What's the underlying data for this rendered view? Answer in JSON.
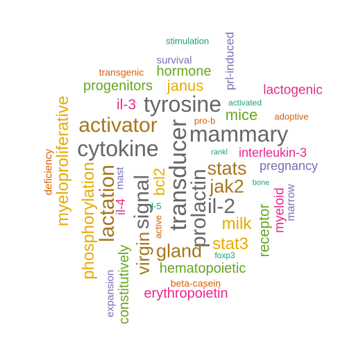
{
  "palette": {
    "teal": "#1b9e77",
    "orange": "#d95f02",
    "purple": "#7570b3",
    "magenta": "#e7298a",
    "green": "#66a61e",
    "gold": "#e6ab02",
    "brown": "#a6761d",
    "gray": "#666666"
  },
  "words": [
    {
      "id": "stimulation",
      "text": "stimulation",
      "color": "teal"
    },
    {
      "id": "survival",
      "text": "survival",
      "color": "purple"
    },
    {
      "id": "transgenic",
      "text": "transgenic",
      "color": "orange"
    },
    {
      "id": "hormone",
      "text": "hormone",
      "color": "green"
    },
    {
      "id": "prl-induced",
      "text": "prl-induced",
      "color": "purple"
    },
    {
      "id": "progenitors",
      "text": "progenitors",
      "color": "green"
    },
    {
      "id": "janus",
      "text": "janus",
      "color": "gold"
    },
    {
      "id": "lactogenic",
      "text": "lactogenic",
      "color": "magenta"
    },
    {
      "id": "activated",
      "text": "activated",
      "color": "teal"
    },
    {
      "id": "il-3",
      "text": "il-3",
      "color": "magenta"
    },
    {
      "id": "tyrosine",
      "text": "tyrosine",
      "color": "gray"
    },
    {
      "id": "mice",
      "text": "mice",
      "color": "green"
    },
    {
      "id": "adoptive",
      "text": "adoptive",
      "color": "orange"
    },
    {
      "id": "myeloproliferative",
      "text": "myeloproliferative",
      "color": "gold"
    },
    {
      "id": "pro-b",
      "text": "pro-b",
      "color": "orange"
    },
    {
      "id": "activator",
      "text": "activator",
      "color": "brown"
    },
    {
      "id": "mammary",
      "text": "mammary",
      "color": "gray"
    },
    {
      "id": "cytokine",
      "text": "cytokine",
      "color": "gray"
    },
    {
      "id": "transducer",
      "text": "transducer",
      "color": "gray"
    },
    {
      "id": "deficiency",
      "text": "deficiency",
      "color": "orange"
    },
    {
      "id": "rankl",
      "text": "rankl",
      "color": "teal"
    },
    {
      "id": "interleukin-3",
      "text": "interleukin-3",
      "color": "magenta"
    },
    {
      "id": "mast",
      "text": "mast",
      "color": "purple"
    },
    {
      "id": "stats",
      "text": "stats",
      "color": "brown"
    },
    {
      "id": "pregnancy",
      "text": "pregnancy",
      "color": "purple"
    },
    {
      "id": "lactation",
      "text": "lactation",
      "color": "brown"
    },
    {
      "id": "prolactin",
      "text": "prolactin",
      "color": "gray"
    },
    {
      "id": "bcl2",
      "text": "bcl2",
      "color": "gold"
    },
    {
      "id": "signal",
      "text": "signal",
      "color": "gray"
    },
    {
      "id": "jak2",
      "text": "jak2",
      "color": "brown"
    },
    {
      "id": "bone",
      "text": "bone",
      "color": "teal"
    },
    {
      "id": "phosphorylation",
      "text": "phosphorylation",
      "color": "gold"
    },
    {
      "id": "il-4",
      "text": "il-4",
      "color": "magenta"
    },
    {
      "id": "il-2",
      "text": "il-2",
      "color": "gray"
    },
    {
      "id": "myeloid",
      "text": "myeloid",
      "color": "magenta"
    },
    {
      "id": "marrow",
      "text": "marrow",
      "color": "purple"
    },
    {
      "id": "il-5",
      "text": "il-5",
      "color": "teal"
    },
    {
      "id": "receptor",
      "text": "receptor",
      "color": "green"
    },
    {
      "id": "milk",
      "text": "milk",
      "color": "gold"
    },
    {
      "id": "active",
      "text": "active",
      "color": "orange"
    },
    {
      "id": "virgin",
      "text": "virgin",
      "color": "brown"
    },
    {
      "id": "gland",
      "text": "gland",
      "color": "brown"
    },
    {
      "id": "stat3",
      "text": "stat3",
      "color": "gold"
    },
    {
      "id": "constitutively",
      "text": "constitutively",
      "color": "green"
    },
    {
      "id": "foxp3",
      "text": "foxp3",
      "color": "teal"
    },
    {
      "id": "hematopoietic",
      "text": "hematopoietic",
      "color": "green"
    },
    {
      "id": "expansion",
      "text": "expansion",
      "color": "purple"
    },
    {
      "id": "beta-casein",
      "text": "beta-casein",
      "color": "orange"
    },
    {
      "id": "erythropoietin",
      "text": "erythropoietin",
      "color": "magenta"
    }
  ]
}
